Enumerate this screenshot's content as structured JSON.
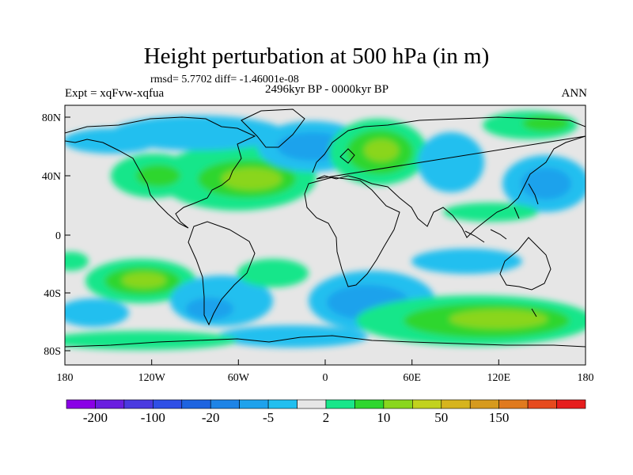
{
  "title": "Height perturbation at 500 hPa (in m)",
  "stats": "rmsd= 5.7702 diff= -1.46001e-08",
  "period": "2496kyr BP - 0000kyr BP",
  "experiment": "Expt = xqFvw-xqfua",
  "season": "ANN",
  "map": {
    "lat_ticks": [
      "80N",
      "40N",
      "0",
      "40S",
      "80S"
    ],
    "lon_ticks": [
      "180",
      "120W",
      "60W",
      "0",
      "60E",
      "120E",
      "180"
    ],
    "background_color": "#e6e6e6"
  },
  "colorbar": {
    "colors": [
      "#8a00e6",
      "#6a1ee0",
      "#4a3ae0",
      "#2f4fe6",
      "#1e64e0",
      "#1e84e6",
      "#1ea2ec",
      "#22bfef",
      "#e6e6e6",
      "#19e68a",
      "#2fd62f",
      "#8ad61e",
      "#c2d21e",
      "#d6b41e",
      "#d69a1e",
      "#e07a1e",
      "#e64a1e",
      "#e61e1e"
    ],
    "labels": [
      "-200",
      "-100",
      "-20",
      "-5",
      "2",
      "10",
      "50",
      "150"
    ]
  }
}
